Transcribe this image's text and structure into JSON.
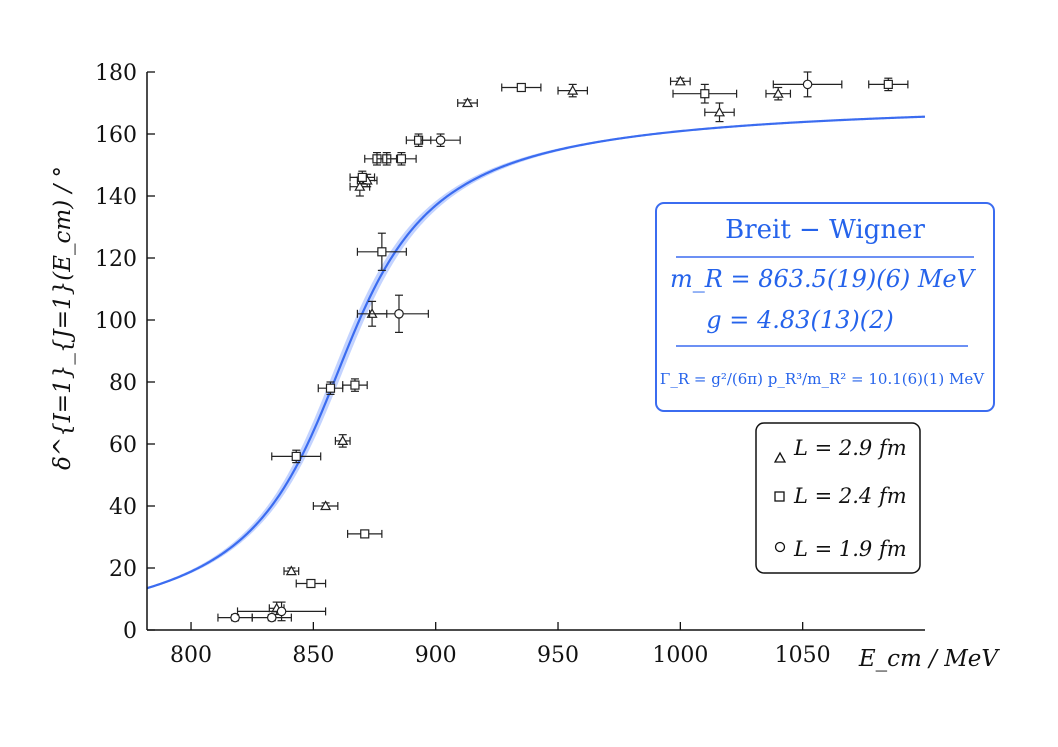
{
  "chart_data": {
    "type": "scatter",
    "xlabel": "E_cm / MeV",
    "ylabel": "δ^{I=1}_{J=1}(E_cm) / °",
    "xlim": [
      782,
      1100
    ],
    "ylim": [
      0,
      180
    ],
    "xticks": [
      800,
      850,
      900,
      950,
      1000,
      1050
    ],
    "yticks": [
      0,
      20,
      40,
      60,
      80,
      100,
      120,
      140,
      160,
      180
    ],
    "grid": false,
    "legend_position": "lower-right",
    "fit": {
      "name": "Breit – Wigner",
      "m_R_MeV": 863.5,
      "g": 4.83,
      "width_MeV": 10.1,
      "color": "#3b6cf0",
      "band_color": "#a9c0ff",
      "label_title": "Breit − Wigner",
      "label_m": "m_R = 863.5(19)(6) MeV",
      "label_g": "g = 4.83(13)(2)",
      "label_gamma": "Γ_R = g²/(6π) · p_R³/m_R² = 10.1(6)(1) MeV"
    },
    "series": [
      {
        "name": "L = 2.9 fm",
        "marker": "triangle",
        "points": [
          {
            "x": 835,
            "y": 7,
            "xerr": 3,
            "yerr": 2
          },
          {
            "x": 841,
            "y": 19,
            "xerr": 3,
            "yerr": 1
          },
          {
            "x": 855,
            "y": 40,
            "xerr": 5,
            "yerr": 1
          },
          {
            "x": 862,
            "y": 61,
            "xerr": 3,
            "yerr": 2
          },
          {
            "x": 874,
            "y": 102,
            "xerr": 6,
            "yerr": 4
          },
          {
            "x": 869,
            "y": 143,
            "xerr": 4,
            "yerr": 3
          },
          {
            "x": 872,
            "y": 145,
            "xerr": 4,
            "yerr": 2
          },
          {
            "x": 913,
            "y": 170,
            "xerr": 4,
            "yerr": 1
          },
          {
            "x": 956,
            "y": 174,
            "xerr": 6,
            "yerr": 2
          },
          {
            "x": 1000,
            "y": 177,
            "xerr": 4,
            "yerr": 1
          },
          {
            "x": 1016,
            "y": 167,
            "xerr": 6,
            "yerr": 3
          },
          {
            "x": 1040,
            "y": 173,
            "xerr": 5,
            "yerr": 2
          }
        ]
      },
      {
        "name": "L = 2.4 fm",
        "marker": "square",
        "points": [
          {
            "x": 849,
            "y": 15,
            "xerr": 6,
            "yerr": 1
          },
          {
            "x": 843,
            "y": 56,
            "xerr": 10,
            "yerr": 2
          },
          {
            "x": 871,
            "y": 31,
            "xerr": 7,
            "yerr": 1
          },
          {
            "x": 857,
            "y": 78,
            "xerr": 5,
            "yerr": 2
          },
          {
            "x": 867,
            "y": 79,
            "xerr": 5,
            "yerr": 2
          },
          {
            "x": 878,
            "y": 122,
            "xerr": 10,
            "yerr": 6
          },
          {
            "x": 870,
            "y": 146,
            "xerr": 5,
            "yerr": 2
          },
          {
            "x": 876,
            "y": 152,
            "xerr": 5,
            "yerr": 2
          },
          {
            "x": 880,
            "y": 152,
            "xerr": 4,
            "yerr": 2
          },
          {
            "x": 886,
            "y": 152,
            "xerr": 6,
            "yerr": 2
          },
          {
            "x": 893,
            "y": 158,
            "xerr": 5,
            "yerr": 2
          },
          {
            "x": 935,
            "y": 175,
            "xerr": 8,
            "yerr": 1
          },
          {
            "x": 1010,
            "y": 173,
            "xerr": 13,
            "yerr": 3
          },
          {
            "x": 1085,
            "y": 176,
            "xerr": 8,
            "yerr": 2
          }
        ]
      },
      {
        "name": "L = 1.9 fm",
        "marker": "circle",
        "points": [
          {
            "x": 818,
            "y": 4,
            "xerr": 7,
            "yerr": 1
          },
          {
            "x": 833,
            "y": 4,
            "xerr": 8,
            "yerr": 1
          },
          {
            "x": 837,
            "y": 6,
            "xerr": 18,
            "yerr": 3
          },
          {
            "x": 885,
            "y": 102,
            "xerr": 12,
            "yerr": 6
          },
          {
            "x": 902,
            "y": 158,
            "xerr": 8,
            "yerr": 2
          },
          {
            "x": 1052,
            "y": 176,
            "xerr": 14,
            "yerr": 4
          }
        ]
      }
    ]
  },
  "fit_box": {
    "title": "Breit − Wigner",
    "mass_line": "m_R = 863.5(19)(6) MeV",
    "g_line": "g = 4.83(13)(2)",
    "gamma_line": "Γ_R = g²/(6π) p_R³/m_R² = 10.1(6)(1) MeV"
  },
  "legend": {
    "items": [
      {
        "label": "L = 2.9 fm",
        "marker": "triangle"
      },
      {
        "label": "L = 2.4 fm",
        "marker": "square"
      },
      {
        "label": "L = 1.9 fm",
        "marker": "circle"
      }
    ]
  }
}
